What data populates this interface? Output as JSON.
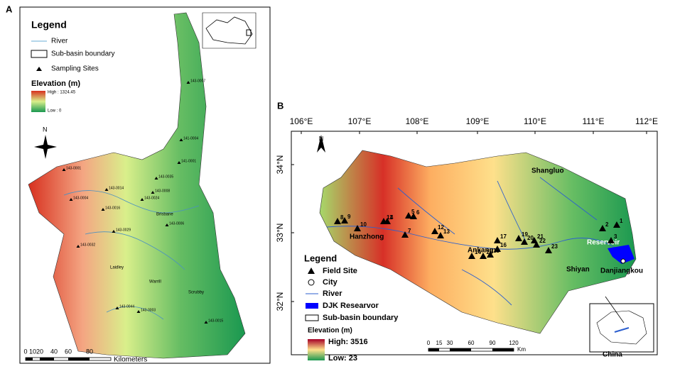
{
  "panel_a": {
    "label": "A",
    "legend": {
      "title": "Legend",
      "items": [
        "River",
        "Sub-basin boundary",
        "Sampling Sites"
      ],
      "elevation_title": "Elevation (m)",
      "high": "High : 1324.45",
      "low": "Low : 0"
    },
    "north": "N",
    "scale": {
      "ticks": [
        "0",
        "10",
        "20",
        "40",
        "60",
        "80"
      ],
      "unit": "Kilometers"
    },
    "places": [
      "Brisbane",
      "Laidley",
      "Warrill",
      "Scrubby"
    ],
    "sites": [
      "143-0007",
      "141-0004",
      "141-0001",
      "143-0001",
      "143-0014",
      "143-0008",
      "143-0004",
      "143-0016",
      "143-0029",
      "143-0032",
      "143-0024",
      "143-0035",
      "143-0006",
      "143-0044",
      "143-0003",
      "143-0015"
    ]
  },
  "panel_b": {
    "label": "B",
    "longitudes": [
      "106°E",
      "107°E",
      "108°E",
      "109°E",
      "110°E",
      "111°E",
      "112°E"
    ],
    "latitudes": [
      "34°N",
      "33°N",
      "32°N"
    ],
    "north": "N",
    "legend": {
      "title": "Legend",
      "items": [
        "Field Site",
        "City",
        "River",
        "DJK Researvor",
        "Sub-basin boundary"
      ],
      "elevation_title": "Elevation (m)",
      "high": "High: 3516",
      "low": "Low: 23"
    },
    "scale": {
      "ticks": [
        "0",
        "15",
        "30",
        "60",
        "90",
        "120"
      ],
      "unit": "Km"
    },
    "places": [
      "Hanzhong",
      "Ankang",
      "Shangluo",
      "Shiyan",
      "Reservoir",
      "Danjiangkou"
    ],
    "sites": [
      "1",
      "2",
      "3",
      "4",
      "5",
      "6",
      "7",
      "8",
      "9",
      "10",
      "11",
      "12",
      "13",
      "14",
      "15",
      "16",
      "17",
      "18",
      "19",
      "20",
      "21",
      "22",
      "23"
    ],
    "inset_label": "China"
  }
}
